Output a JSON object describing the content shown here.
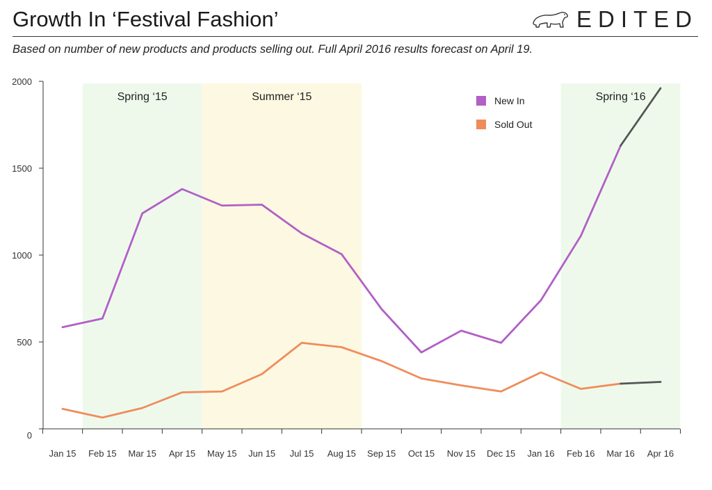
{
  "header": {
    "title": "Growth In ‘Festival Fashion’",
    "brand": "EDITED",
    "subtitle": "Based on number of new products and products selling out. Full April 2016 results forecast on April 19."
  },
  "chart_data": {
    "type": "line",
    "title": "Growth In ‘Festival Fashion’",
    "subtitle": "Based on number of new products and products selling out. Full April 2016 results forecast on April 19.",
    "xlabel": "",
    "ylabel": "",
    "categories": [
      "Jan 15",
      "Feb 15",
      "Mar 15",
      "Apr 15",
      "May 15",
      "Jun 15",
      "Jul 15",
      "Aug 15",
      "Sep 15",
      "Oct 15",
      "Nov 15",
      "Dec 15",
      "Jan 16",
      "Feb 16",
      "Mar 16",
      "Apr 16"
    ],
    "y_ticks": [
      0,
      500,
      1000,
      1500,
      2000
    ],
    "ylim": [
      0,
      2000
    ],
    "grid": false,
    "legend_position": "top-right",
    "series": [
      {
        "name": "New In",
        "color": "#b25fc6",
        "values": [
          585,
          635,
          1240,
          1380,
          1285,
          1290,
          1125,
          1005,
          690,
          440,
          565,
          495,
          740,
          1110,
          1630,
          1960
        ]
      },
      {
        "name": "Sold Out",
        "color": "#ef8c5a",
        "values": [
          115,
          65,
          120,
          210,
          215,
          315,
          495,
          470,
          390,
          290,
          250,
          215,
          325,
          230,
          260,
          270
        ]
      }
    ],
    "forecast": {
      "from_category": "Mar 16",
      "to_category": "Apr 16",
      "color": "#555555"
    },
    "bands": [
      {
        "label": "Spring ‘15",
        "from": 0.5,
        "to": 3.5,
        "color": "#eef9ec"
      },
      {
        "label": "Summer ‘15",
        "from": 3.5,
        "to": 7.5,
        "color": "#fdf8e1"
      },
      {
        "label": "Spring ‘16",
        "from": 12.5,
        "to": 15.5,
        "color": "#eef9ec"
      }
    ]
  }
}
